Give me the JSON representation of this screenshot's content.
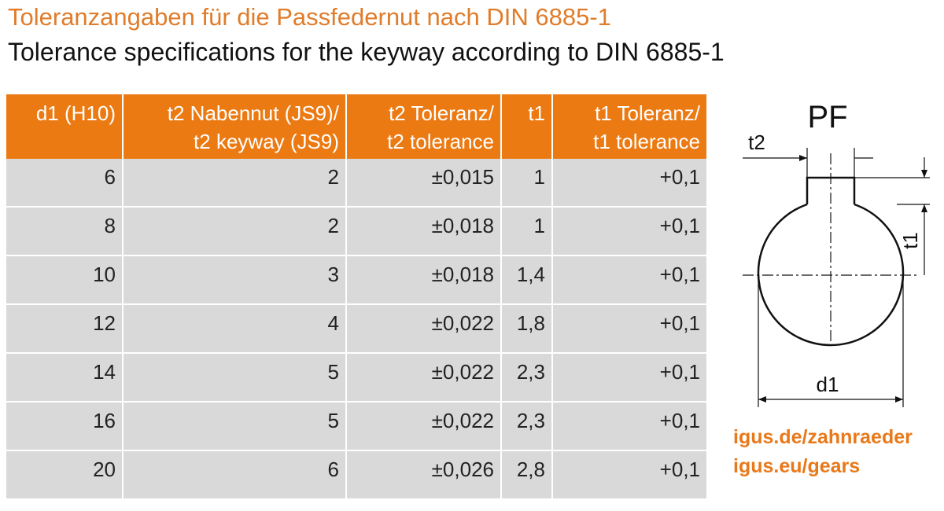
{
  "title_de": "Toleranzangaben für die Passfedernut nach DIN 6885-1",
  "title_en": "Tolerance specifications for the keyway according to DIN 6885-1",
  "table": {
    "header": [
      [
        "d1 (H10)"
      ],
      [
        "t2 Nabennut (JS9)/",
        "t2 keyway (JS9)"
      ],
      [
        "t2 Toleranz/",
        "t2 tolerance"
      ],
      [
        "t1"
      ],
      [
        "t1 Toleranz/",
        "t1 tolerance"
      ]
    ],
    "rows": [
      [
        "6",
        "2",
        "±0,015",
        "1",
        "+0,1"
      ],
      [
        "8",
        "2",
        "±0,018",
        "1",
        "+0,1"
      ],
      [
        "10",
        "3",
        "±0,018",
        "1,4",
        "+0,1"
      ],
      [
        "12",
        "4",
        "±0,022",
        "1,8",
        "+0,1"
      ],
      [
        "14",
        "5",
        "±0,022",
        "2,3",
        "+0,1"
      ],
      [
        "16",
        "5",
        "±0,022",
        "2,3",
        "+0,1"
      ],
      [
        "20",
        "6",
        "±0,026",
        "2,8",
        "+0,1"
      ]
    ]
  },
  "diagram": {
    "title": "PF",
    "t2": "t2",
    "t1": "t1",
    "d1": "d1"
  },
  "links": [
    "igus.de/zahnraeder",
    "igus.eu/gears"
  ]
}
